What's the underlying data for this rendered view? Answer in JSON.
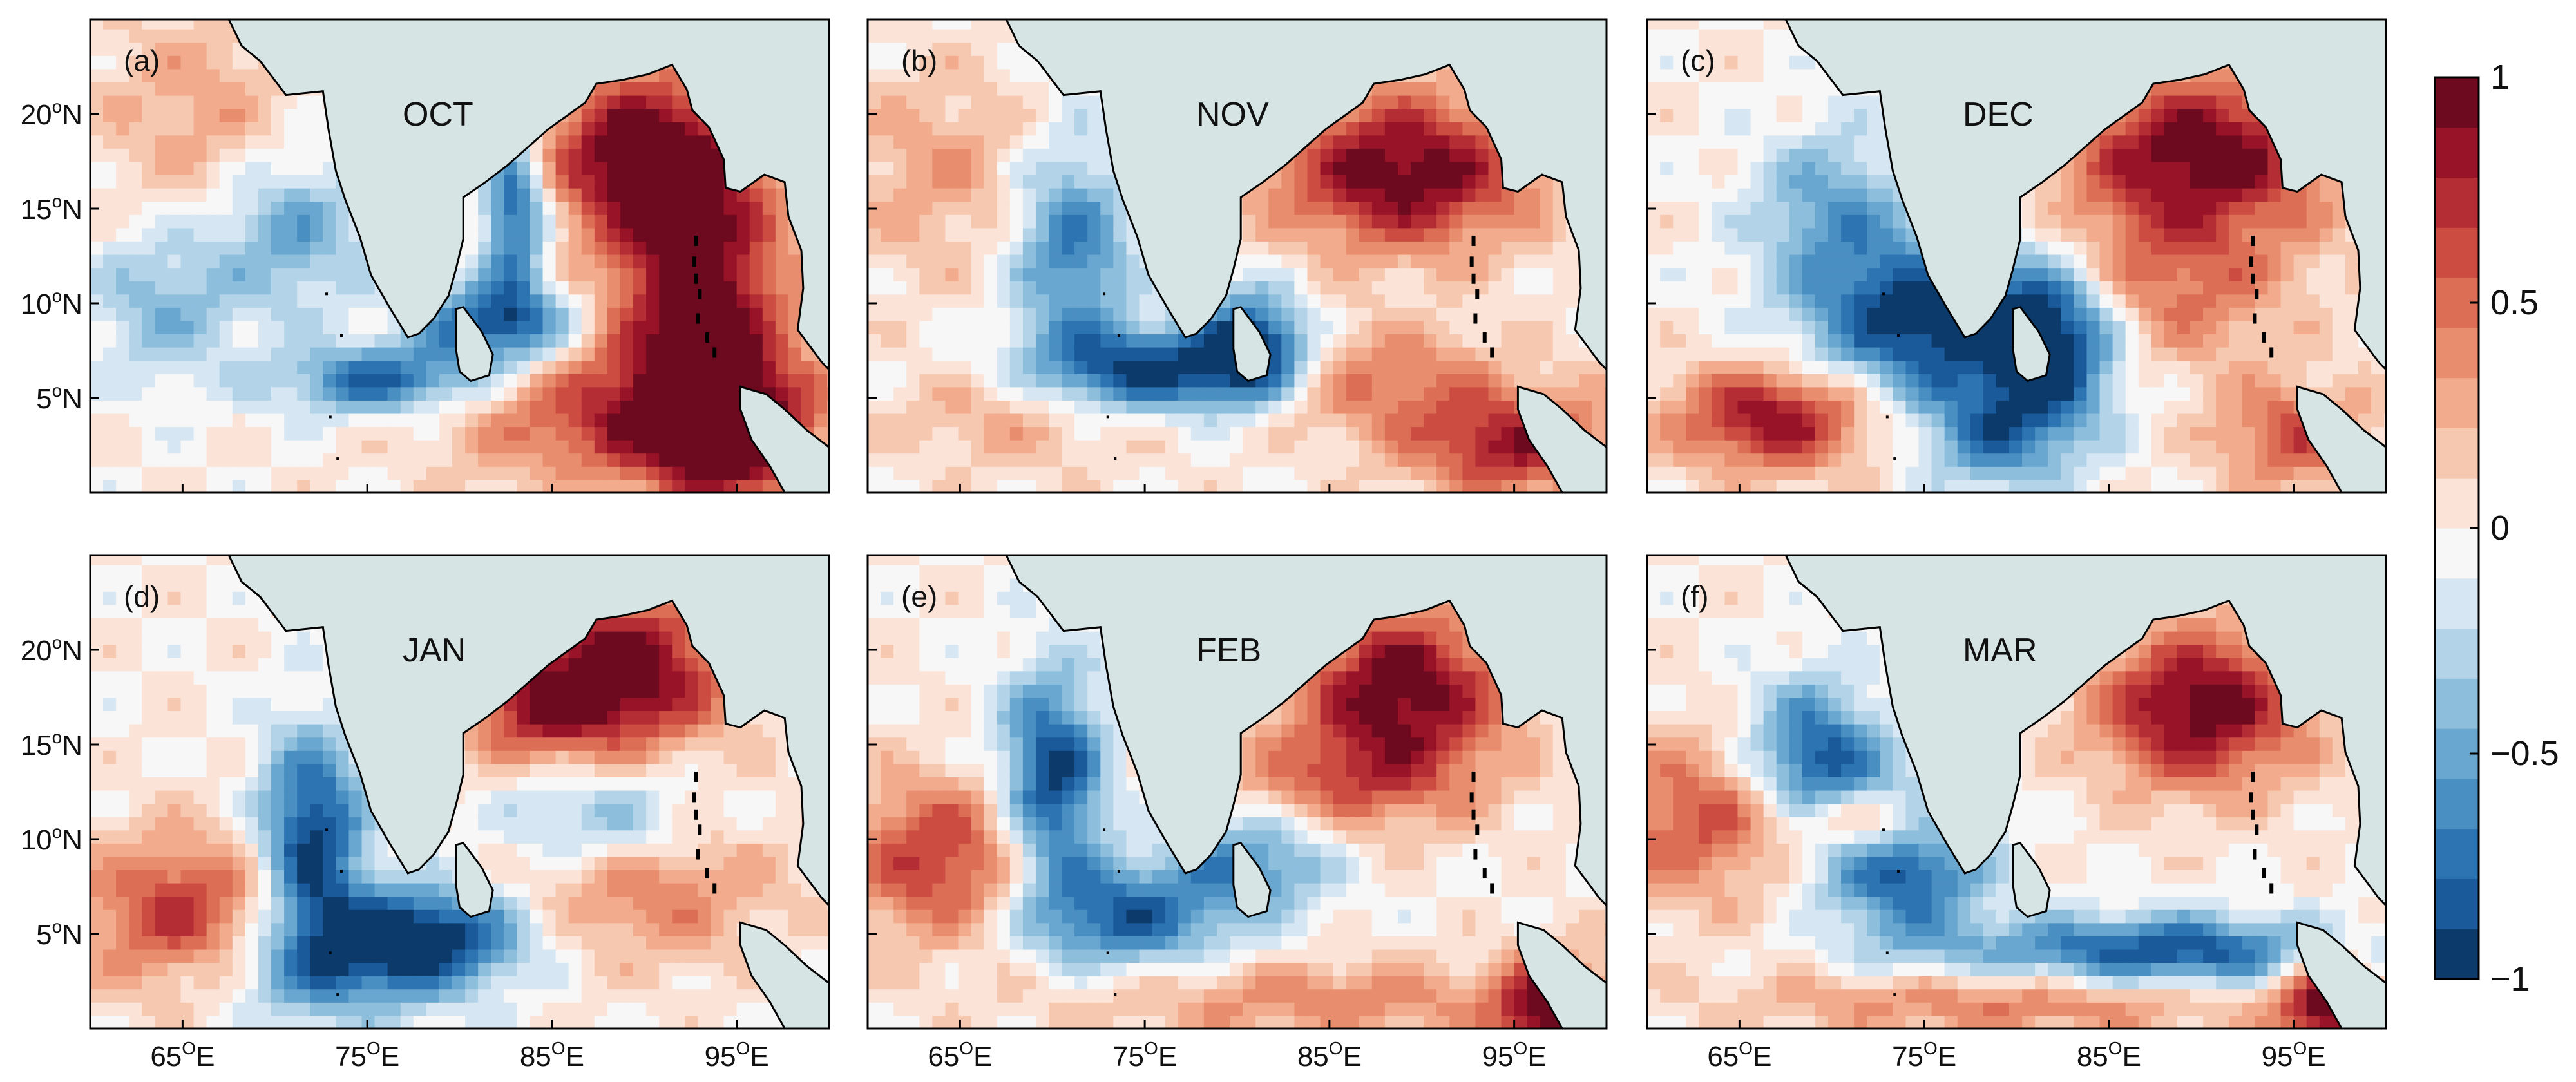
{
  "figure": {
    "panels": [
      {
        "letter": "(a)",
        "month": "OCT"
      },
      {
        "letter": "(b)",
        "month": "NOV"
      },
      {
        "letter": "(c)",
        "month": "DEC"
      },
      {
        "letter": "(d)",
        "month": "JAN"
      },
      {
        "letter": "(e)",
        "month": "FEB"
      },
      {
        "letter": "(f)",
        "month": "MAR"
      }
    ],
    "lat_ticks": [
      {
        "lat": 20,
        "deg": "20",
        "hemi": "N"
      },
      {
        "lat": 15,
        "deg": "15",
        "hemi": "N"
      },
      {
        "lat": 10,
        "deg": "10",
        "hemi": "N"
      },
      {
        "lat": 5,
        "deg": "5",
        "hemi": "N"
      }
    ],
    "lon_ticks": [
      {
        "lon": 65,
        "deg": "65",
        "hemi": "E"
      },
      {
        "lon": 75,
        "deg": "75",
        "hemi": "E"
      },
      {
        "lon": 85,
        "deg": "85",
        "hemi": "E"
      },
      {
        "lon": 95,
        "deg": "95",
        "hemi": "E"
      }
    ],
    "lon_range": [
      60,
      100
    ],
    "lat_range": [
      0,
      25
    ],
    "colorbar": {
      "ticks": [
        {
          "value": 1,
          "label": "1"
        },
        {
          "value": 0.5,
          "label": "0.5"
        },
        {
          "value": 0,
          "label": "0"
        },
        {
          "value": -0.5,
          "label": "−0.5"
        },
        {
          "value": -1,
          "label": "−1"
        }
      ],
      "range": [
        -1,
        1
      ],
      "colors": [
        "#0b3a6b",
        "#1a5a9b",
        "#2d74b3",
        "#4a8fc2",
        "#6aa7d0",
        "#8dbfdd",
        "#b3d4e8",
        "#d6e6f2",
        "#f7f7f7",
        "#fbe3d8",
        "#f7c8b0",
        "#f2ab8c",
        "#e88e6e",
        "#dc6e55",
        "#cc4c41",
        "#b42d34",
        "#981327",
        "#6d0a1f"
      ]
    },
    "colors": {
      "land": "#d6e5e4",
      "coast": "#000000",
      "frame": "#000000"
    }
  }
}
